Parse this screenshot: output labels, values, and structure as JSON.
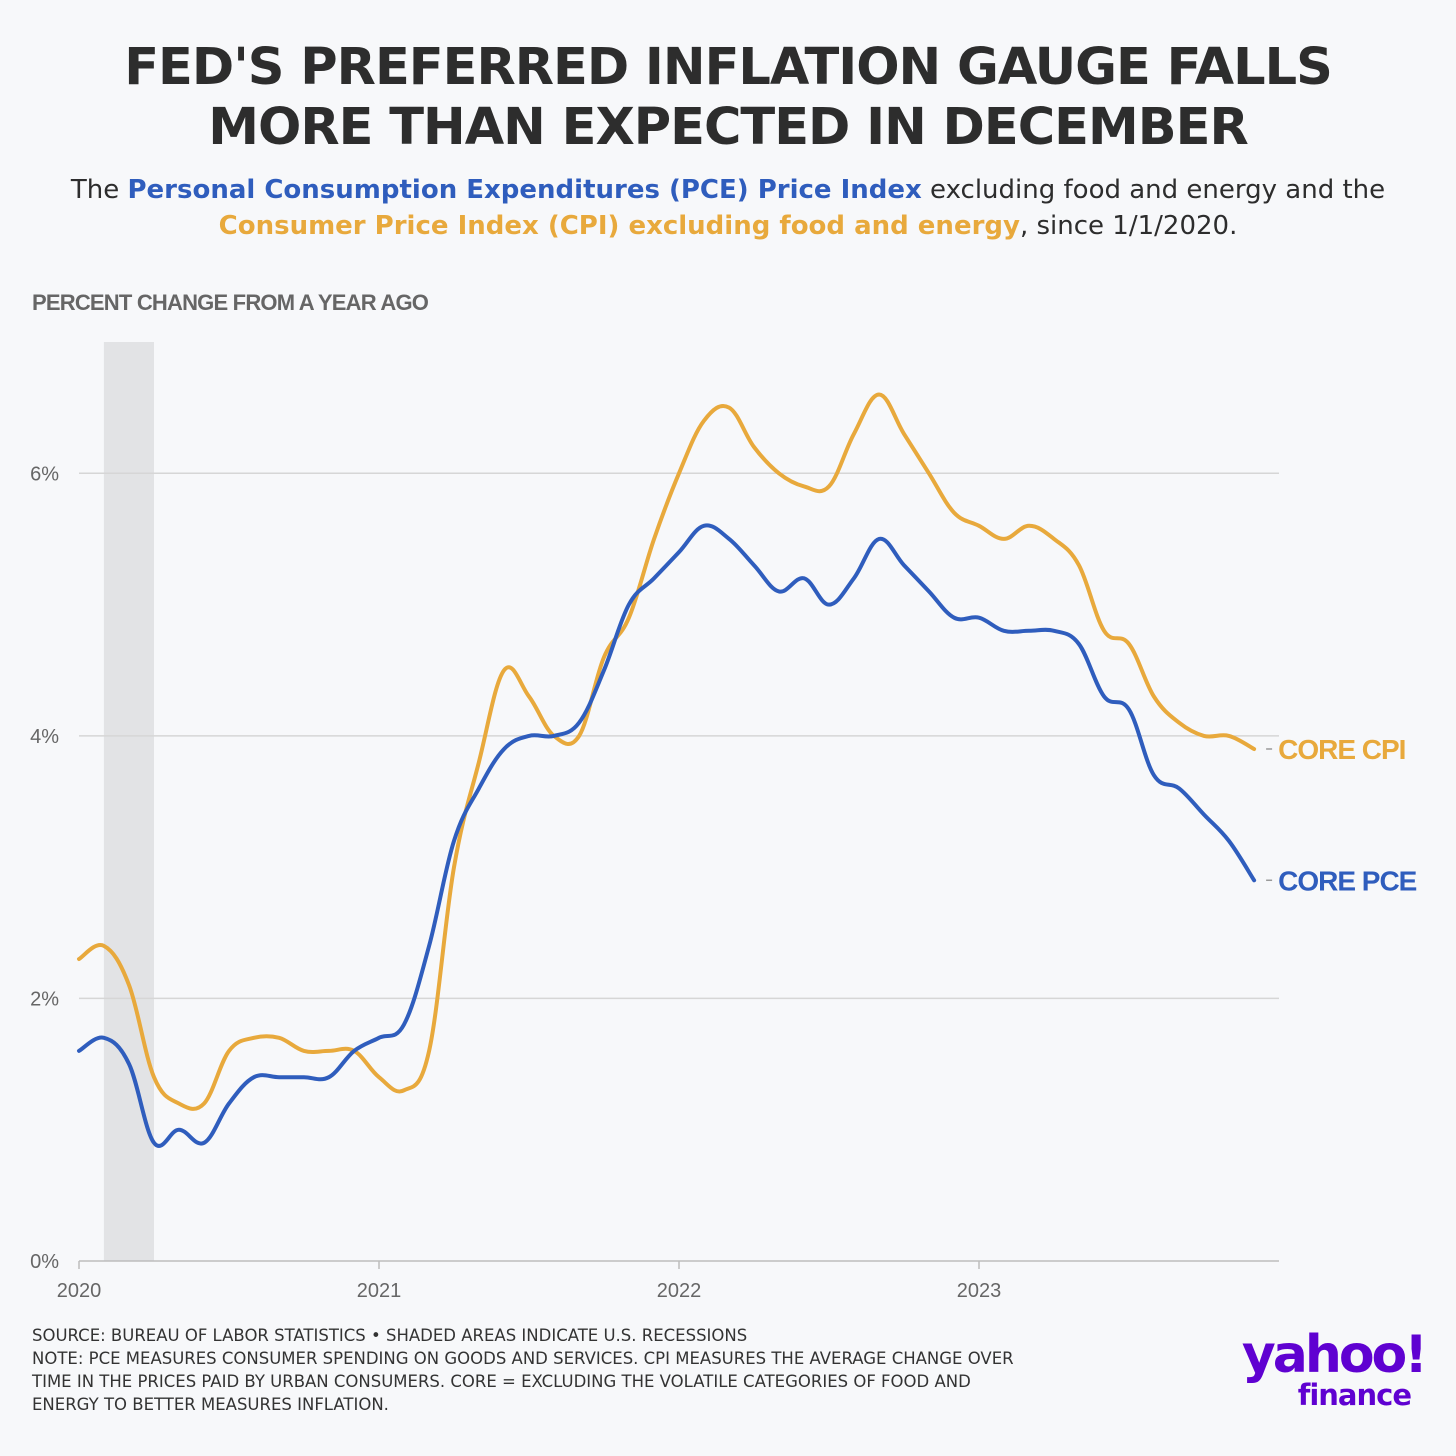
{
  "header": {
    "title_line1": "FED'S PREFERRED INFLATION GAUGE FALLS",
    "title_line2": "MORE THAN EXPECTED IN DECEMBER",
    "subtitle_the": "The ",
    "subtitle_pce": "Personal Consumption Expenditures (PCE) Price Index",
    "subtitle_mid": " excluding food and energy and the",
    "subtitle_cpi": "Consumer Price Index (CPI) excluding food and energy",
    "subtitle_end": ", since 1/1/2020."
  },
  "colors": {
    "pce": "#2f5dbd",
    "cpi": "#e8a93c",
    "recession": "#e2e3e5",
    "grid": "#d6d6d6",
    "logo": "#5f01d1"
  },
  "chart_data": {
    "type": "line",
    "title": "FED'S PREFERRED INFLATION GAUGE FALLS MORE THAN EXPECTED IN DECEMBER",
    "ylabel": "PERCENT CHANGE FROM A YEAR AGO",
    "xlabel": "",
    "ylim": [
      0,
      7
    ],
    "yticks": [
      0,
      2,
      4,
      6
    ],
    "ytick_labels": [
      "0%",
      "2%",
      "4%",
      "6%"
    ],
    "xlim": [
      2020.0,
      2024.0
    ],
    "xticks": [
      2020,
      2021,
      2022,
      2023
    ],
    "xtick_labels": [
      "2020",
      "2021",
      "2022",
      "2023"
    ],
    "grid": true,
    "recession": {
      "start": 2020.083,
      "end": 2020.25
    },
    "x": [
      2020.0,
      2020.083,
      2020.167,
      2020.25,
      2020.333,
      2020.417,
      2020.5,
      2020.583,
      2020.667,
      2020.75,
      2020.833,
      2020.917,
      2021.0,
      2021.083,
      2021.167,
      2021.25,
      2021.333,
      2021.417,
      2021.5,
      2021.583,
      2021.667,
      2021.75,
      2021.833,
      2021.917,
      2022.0,
      2022.083,
      2022.167,
      2022.25,
      2022.333,
      2022.417,
      2022.5,
      2022.583,
      2022.667,
      2022.75,
      2022.833,
      2022.917,
      2023.0,
      2023.083,
      2023.167,
      2023.25,
      2023.333,
      2023.417,
      2023.5,
      2023.583,
      2023.667,
      2023.75,
      2023.833,
      2023.917
    ],
    "series": [
      {
        "name": "CORE CPI",
        "label": "CORE CPI",
        "color": "#e8a93c",
        "values": [
          2.3,
          2.4,
          2.1,
          1.4,
          1.2,
          1.2,
          1.6,
          1.7,
          1.7,
          1.6,
          1.6,
          1.6,
          1.4,
          1.3,
          1.6,
          3.0,
          3.8,
          4.5,
          4.3,
          4.0,
          4.0,
          4.6,
          4.9,
          5.5,
          6.0,
          6.4,
          6.5,
          6.2,
          6.0,
          5.9,
          5.9,
          6.3,
          6.6,
          6.3,
          6.0,
          5.7,
          5.6,
          5.5,
          5.6,
          5.5,
          5.3,
          4.8,
          4.7,
          4.3,
          4.1,
          4.0,
          4.0,
          3.9
        ]
      },
      {
        "name": "CORE PCE",
        "label": "CORE PCE",
        "color": "#2f5dbd",
        "values": [
          1.6,
          1.7,
          1.5,
          0.9,
          1.0,
          0.9,
          1.2,
          1.4,
          1.4,
          1.4,
          1.4,
          1.6,
          1.7,
          1.8,
          2.4,
          3.2,
          3.6,
          3.9,
          4.0,
          4.0,
          4.1,
          4.5,
          5.0,
          5.2,
          5.4,
          5.6,
          5.5,
          5.3,
          5.1,
          5.2,
          5.0,
          5.2,
          5.5,
          5.3,
          5.1,
          4.9,
          4.9,
          4.8,
          4.8,
          4.8,
          4.7,
          4.3,
          4.2,
          3.7,
          3.6,
          3.4,
          3.2,
          2.9
        ]
      }
    ]
  },
  "footer": {
    "source": "SOURCE: BUREAU OF LABOR STATISTICS • SHADED AREAS INDICATE U.S. RECESSIONS",
    "note_line1": "NOTE: PCE MEASURES CONSUMER SPENDING ON GOODS AND SERVICES. CPI MEASURES THE AVERAGE CHANGE OVER",
    "note_line2": "TIME IN THE PRICES PAID BY URBAN CONSUMERS. CORE = EXCLUDING THE VOLATILE CATEGORIES OF FOOD AND",
    "note_line3": "ENERGY TO BETTER MEASURES INFLATION."
  },
  "logo": {
    "wordmark": "yahoo!",
    "product": "finance"
  }
}
